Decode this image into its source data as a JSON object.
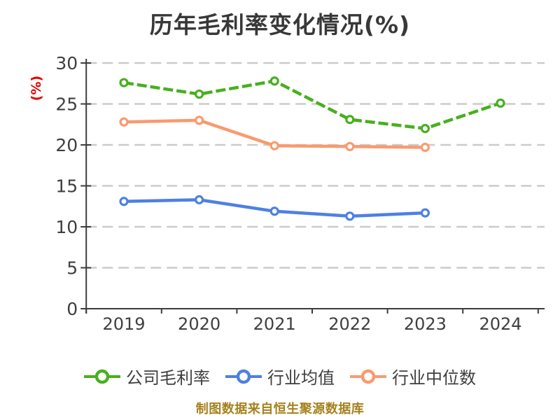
{
  "title": "历年毛利率变化情况(%)",
  "footer": {
    "text": "制图数据来自恒生聚源数据库",
    "color": "#a5821e"
  },
  "axis": {
    "color": "#3c3c3c",
    "tick_label_color": "#3f3f3f",
    "grid_color": "#cbcbcb"
  },
  "chart_data": {
    "type": "line",
    "title": "历年毛利率变化情况(%)",
    "xlabel": "",
    "ylabel": "(%)",
    "ylabel_color": "#e60000",
    "categories": [
      "2019",
      "2020",
      "2021",
      "2022",
      "2023",
      "2024"
    ],
    "series": [
      {
        "key": "company-gross-margin",
        "name": "公司毛利率",
        "color": "#47b01f",
        "line_style": "dashed",
        "marker": "circle-white-fill",
        "values": [
          27.6,
          26.2,
          27.8,
          23.1,
          22.0,
          25.1
        ]
      },
      {
        "key": "industry-average",
        "name": "行业均值",
        "color": "#4e80e4",
        "line_style": "solid",
        "marker": "circle-white-fill",
        "values": [
          13.1,
          13.3,
          11.9,
          11.3,
          11.7,
          null
        ]
      },
      {
        "key": "industry-median",
        "name": "行业中位数",
        "color": "#f99a6f",
        "line_style": "solid",
        "marker": "circle-white-fill",
        "values": [
          22.8,
          23.0,
          19.9,
          19.8,
          19.7,
          null
        ]
      }
    ],
    "ylim": [
      0,
      30
    ],
    "yticks": [
      0,
      5,
      10,
      15,
      20,
      25,
      30
    ],
    "grid": true,
    "grid_style": "dashed",
    "legend_position": "bottom"
  }
}
